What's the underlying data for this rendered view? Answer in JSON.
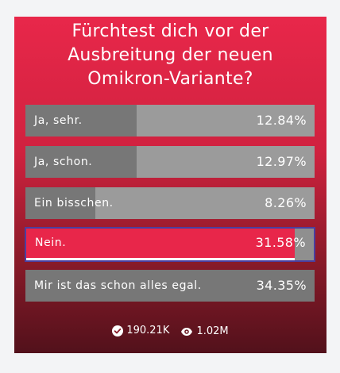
{
  "poll": {
    "question_lines": [
      "Fürchtest dich vor der",
      "Ausbreitung der neuen",
      "Omikron-Variante?"
    ],
    "options": [
      {
        "label": "Ja, sehr.",
        "percent_text": "12.84%",
        "fraction": 0.3846
      },
      {
        "label": "Ja, schon.",
        "percent_text": "12.97%",
        "fraction": 0.3846
      },
      {
        "label": "Ein bisschen.",
        "percent_text": "8.26%",
        "fraction": 0.2418
      },
      {
        "label": "Nein.",
        "percent_text": "31.58%",
        "fraction": 0.9341,
        "selected": true
      },
      {
        "label": "Mir ist das schon alles egal.",
        "percent_text": "34.35%",
        "fraction": 1.0
      }
    ],
    "votes_text": "190.21K",
    "views_text": "1.02M"
  },
  "colors": {
    "accent": "#e8264a",
    "bar_fill": "#777777",
    "bar_track": "#9b9b9b",
    "selected_border": "#4a3fa0",
    "page_bg": "#f3f4f6"
  },
  "icons": {
    "votes": "check-circle-icon",
    "views": "eye-icon"
  }
}
